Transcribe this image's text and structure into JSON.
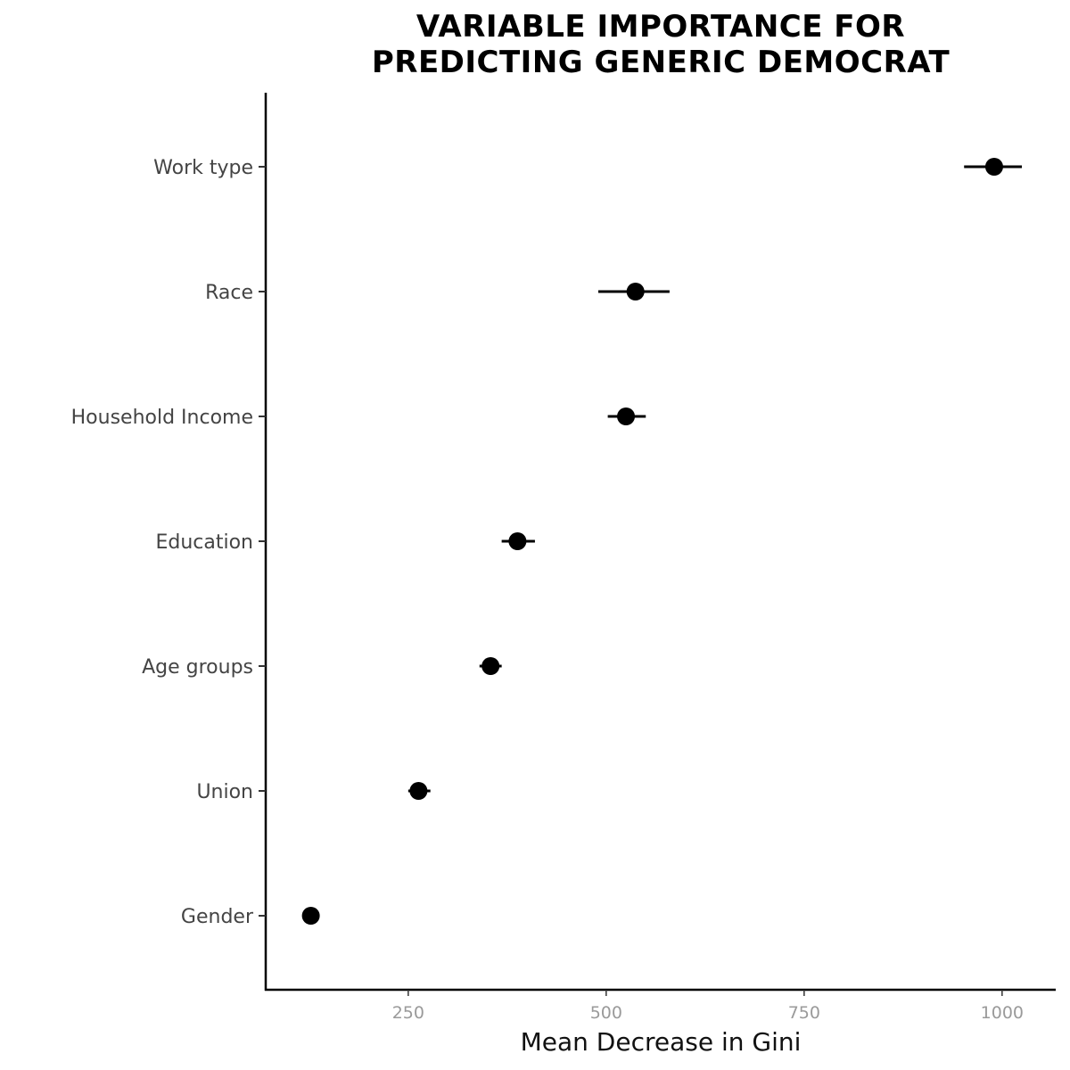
{
  "chart_data": {
    "type": "scatter",
    "title_lines": [
      "VARIABLE IMPORTANCE FOR",
      "PREDICTING GENERIC DEMOCRAT"
    ],
    "xlabel": "Mean Decrease in Gini",
    "ylabel": "",
    "xlim": [
      70,
      1205
    ],
    "xticks": [
      250,
      500,
      750,
      1000
    ],
    "grid": false,
    "points": [
      {
        "category": "Work type",
        "value": 990,
        "low": 952,
        "high": 1025
      },
      {
        "category": "Race",
        "value": 537,
        "low": 490,
        "high": 580
      },
      {
        "category": "Household Income",
        "value": 525,
        "low": 502,
        "high": 550
      },
      {
        "category": "Education",
        "value": 388,
        "low": 368,
        "high": 410
      },
      {
        "category": "Age groups",
        "value": 354,
        "low": 340,
        "high": 368
      },
      {
        "category": "Union",
        "value": 263,
        "low": 250,
        "high": 278
      },
      {
        "category": "Gender",
        "value": 127,
        "low": 120,
        "high": 134
      }
    ]
  }
}
